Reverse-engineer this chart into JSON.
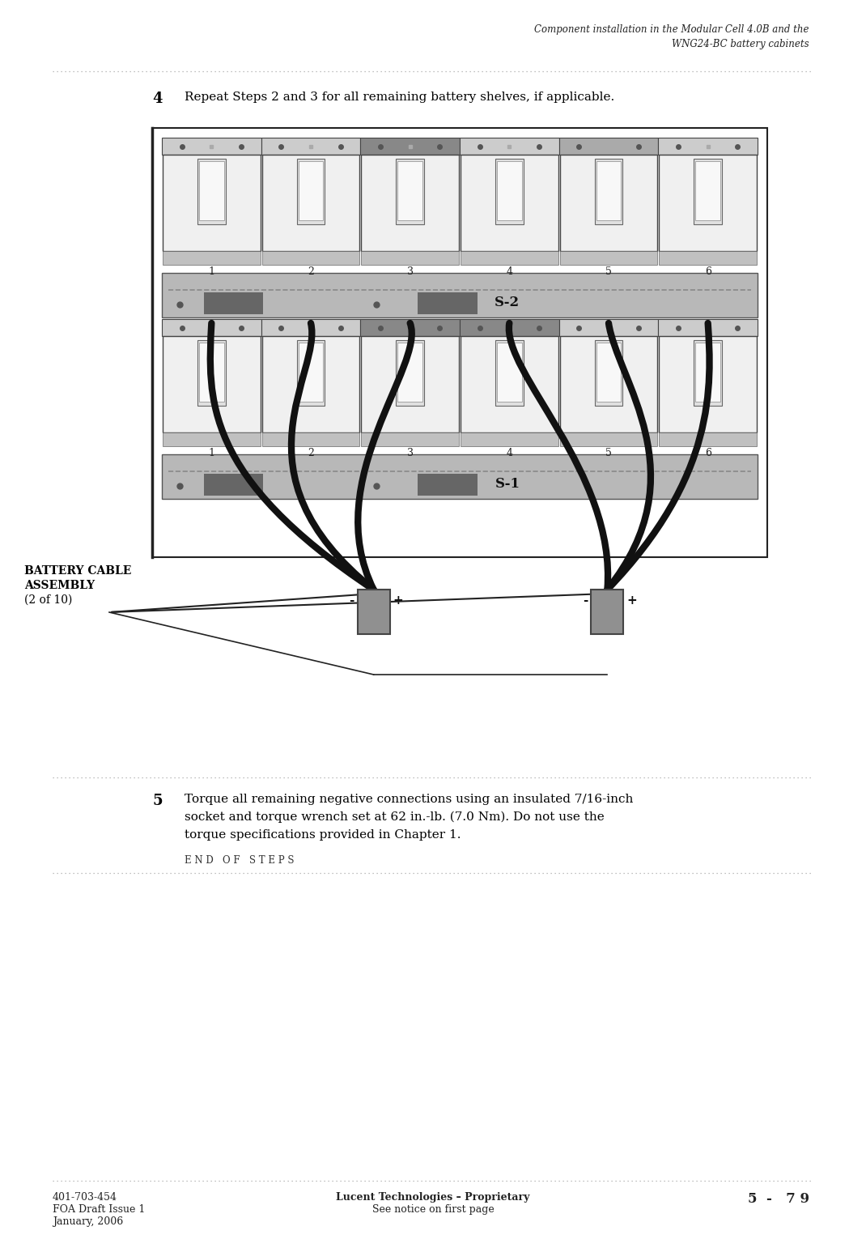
{
  "header_title_line1": "Component installation in the Modular Cell 4.0B and the",
  "header_title_line2": "WNG24-BC battery cabinets",
  "step4_num": "4",
  "step4_text": "Repeat Steps 2 and 3 for all remaining battery shelves, if applicable.",
  "step5_num": "5",
  "step5_line1": "Torque all remaining negative connections using an insulated 7/16-inch",
  "step5_line2": "socket and torque wrench set at 62 in.-lb. (7.0 Nm). Do not use the",
  "step5_line3": "torque specifications provided in Chapter 1.",
  "end_of_steps": "E N D   O F   S T E P S",
  "footer_left_line1": "401-703-454",
  "footer_left_line2": "FOA Draft Issue 1",
  "footer_left_line3": "January, 2006",
  "footer_center_line1": "Lucent Technologies – Proprietary",
  "footer_center_line2": "See notice on first page",
  "footer_right": "5  -   7 9",
  "battery_label_line1": "BATTERY CABLE",
  "battery_label_line2": "ASSEMBLY",
  "battery_label_line3": "(2 of 10)",
  "bg_color": "#ffffff"
}
